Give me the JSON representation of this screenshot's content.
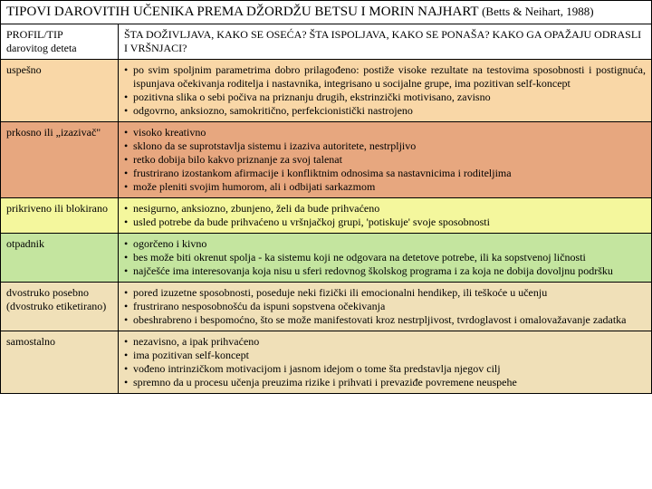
{
  "title": {
    "main": "TIPOVI DAROVITIH UČENIKA PREMA DŽORDŽU BETSU I MORIN NAJHART",
    "citation": "(Betts & Neihart, 1988)"
  },
  "header": {
    "left1": "PROFIL/TIP",
    "left2": "darovitog deteta",
    "right": "ŠTA DOŽIVLJAVA, KAKO SE OSEĆA? ŠTA ISPOLJAVA, KAKO SE PONAŠA? KAKO GA OPAŽAJU ODRASLI I VRŠNJACI?"
  },
  "rows": [
    {
      "bg": "#f9d7a7",
      "label": "uspešno",
      "items": [
        "po svim spoljnim parametrima dobro prilagođeno: postiže visoke rezultate na testovima sposobnosti i postignuća, ispunjava očekivanja roditelja i nastavnika, integrisano u socijalne grupe, ima pozitivan self-koncept",
        "pozitivna slika o sebi počiva na priznanju drugih, ekstrinzički motivisano, zavisno",
        "odgovrno, anksiozno, samokritično, perfekcionistički nastrojeno"
      ]
    },
    {
      "bg": "#e7a77f",
      "label": "prkosno ili „izazivač\"",
      "items": [
        "visoko kreativno",
        "sklono da se suprotstavlja sistemu i izaziva autoritete, nestrpljivo",
        "retko dobija bilo kakvo priznanje za svoj talenat",
        "frustrirano izostankom afirmacije i konfliktnim odnosima sa nastavnicima i roditeljima",
        "može pleniti svojim humorom, ali i odbijati sarkazmom"
      ]
    },
    {
      "bg": "#f4f79d",
      "label": "prikriveno ili blokirano",
      "items": [
        "nesigurno, anksiozno, zbunjeno, želi da bude prihvaćeno",
        "usled potrebe da bude prihvaćeno u vršnjačkoj grupi, 'potiskuje' svoje sposobnosti"
      ]
    },
    {
      "bg": "#c4e59f",
      "label": "otpadnik",
      "items": [
        "ogorčeno i kivno",
        "bes može biti okrenut spolja - ka sistemu koji ne odgovara na detetove potrebe, ili ka sopstvenoj ličnosti",
        "najčešće ima interesovanja koja nisu u sferi redovnog školskog programa i za koja ne dobija dovoljnu podršku"
      ]
    },
    {
      "bg": "#f0e0b8",
      "label": "dvostruko posebno (dvostruko etiketirano)",
      "items": [
        "pored izuzetne sposobnosti, poseduje neki fizički ili emocionalni hendikep, ili teškoće u učenju",
        "frustrirano nesposobnošću da ispuni sopstvena očekivanja",
        "obeshrabreno i bespomoćno, što se može manifestovati kroz nestrpljivost, tvrdoglavost i omalovažavanje zadatka"
      ]
    },
    {
      "bg": "#f0e0b8",
      "label": "samostalno",
      "items": [
        "nezavisno, a ipak prihvaćeno",
        "ima pozitivan self-koncept",
        "vođeno intrinzičkom motivacijom i jasnom idejom o tome šta predstavlja njegov cilj",
        "spremno da u procesu učenja preuzima rizike i prihvati i prevaziđe povremene neuspehe"
      ]
    }
  ]
}
